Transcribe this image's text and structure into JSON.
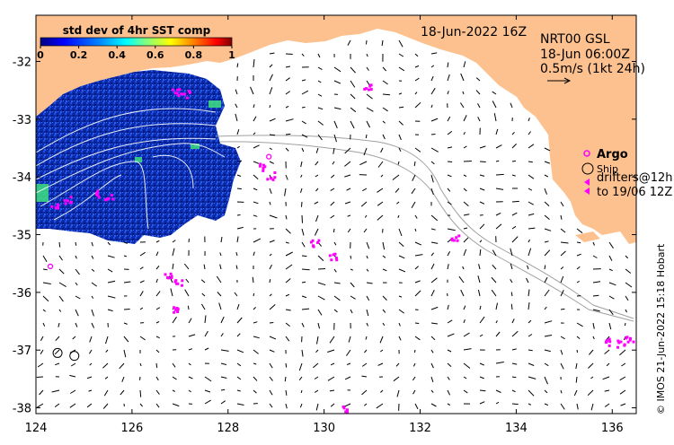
{
  "map": {
    "date_label": "18-Jun-2022 16Z",
    "product_line1": "NRT00 GSL",
    "product_line2": "18-Jun 06:00Z",
    "scale_label": "0.5m/s (1kt 24h)",
    "argo_label": "Argo",
    "ship_label": "Ship",
    "drifters_line1": "drifters@12h",
    "drifters_line2": "to 19/06 12Z",
    "credit": "© IMOS 21-Jun-2022 15:18 Hobart",
    "colors": {
      "land": "#fcc18f",
      "argo": "#ff00ff",
      "drifter": "#ff00ff",
      "track": "#a0a0a0",
      "contour": "#ffffff"
    }
  },
  "colorbar": {
    "title": "std dev of 4hr SST comp",
    "ticks": [
      "0",
      "0.2",
      "0.4",
      "0.6",
      "0.8",
      "1"
    ],
    "range": [
      0,
      1
    ],
    "colormap": [
      "#000080",
      "#0000ff",
      "#0080ff",
      "#00ffff",
      "#80ff80",
      "#ffff00",
      "#ff8000",
      "#ff0000",
      "#800000"
    ]
  },
  "axes": {
    "x_ticks": [
      "124",
      "126",
      "128",
      "130",
      "132",
      "134",
      "136"
    ],
    "y_ticks": [
      "-32",
      "-33",
      "-34",
      "-35",
      "-36",
      "-37",
      "-38"
    ],
    "xlim": [
      124,
      136.5
    ],
    "ylim": [
      -38.1,
      -31.2
    ]
  },
  "argo_floats": [
    {
      "lon": 128.85,
      "lat": -33.65
    },
    {
      "lon": 124.3,
      "lat": -35.55
    }
  ],
  "ships": [
    {
      "lon": 124.45,
      "lat": -37.05
    },
    {
      "lon": 124.8,
      "lat": -37.1
    }
  ]
}
